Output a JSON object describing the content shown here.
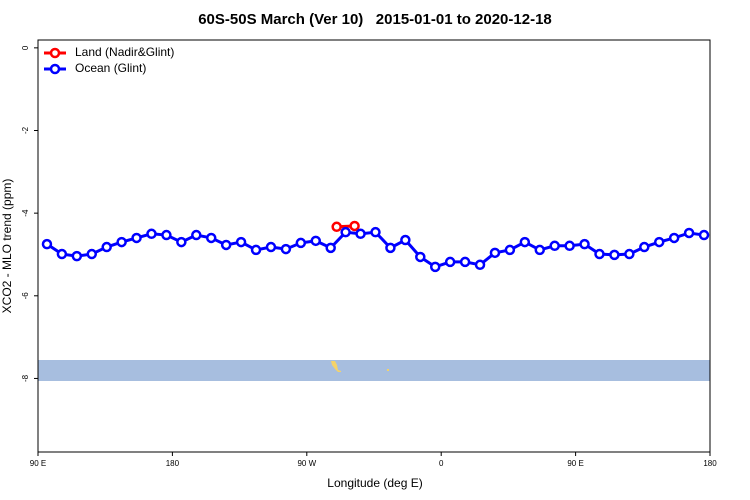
{
  "chart_data": {
    "type": "line",
    "title": "60S-50S March (Ver 10)   2015-01-01 to 2020-12-18",
    "xlabel": "Longitude (deg E)",
    "ylabel": "XCO2 - MLO trend (ppm)",
    "xlim": [
      90,
      540
    ],
    "xticks": [
      {
        "value": 90,
        "label": "90 E"
      },
      {
        "value": 180,
        "label": "180"
      },
      {
        "value": 270,
        "label": "90 W"
      },
      {
        "value": 360,
        "label": "0"
      },
      {
        "value": 450,
        "label": "90 E"
      },
      {
        "value": 540,
        "label": "180"
      }
    ],
    "ylim": [
      -9.78,
      0.19
    ],
    "yticks": [
      0,
      -2,
      -4,
      -6,
      -8
    ],
    "legend": "top-left",
    "series": [
      {
        "name": "Land (Nadir&Glint)",
        "color": "#ff0000",
        "x": [
          290,
          302
        ],
        "values": [
          -4.33,
          -4.31
        ]
      },
      {
        "name": "Ocean (Glint)",
        "color": "#0000ff",
        "x": [
          96,
          106,
          116,
          126,
          136,
          146,
          156,
          166,
          176,
          186,
          196,
          206,
          216,
          226,
          236,
          246,
          256,
          266,
          276,
          286,
          296,
          306,
          316,
          326,
          336,
          346,
          356,
          366,
          376,
          386,
          396,
          406,
          416,
          426,
          436,
          446,
          456,
          466,
          476,
          486,
          496,
          506,
          516,
          526,
          536
        ],
        "values": [
          -4.75,
          -4.99,
          -5.04,
          -4.99,
          -4.82,
          -4.7,
          -4.6,
          -4.5,
          -4.53,
          -4.7,
          -4.53,
          -4.6,
          -4.77,
          -4.7,
          -4.89,
          -4.82,
          -4.87,
          -4.72,
          -4.67,
          -4.84,
          -4.46,
          -4.5,
          -4.46,
          -4.84,
          -4.65,
          -5.06,
          -5.3,
          -5.18,
          -5.18,
          -5.25,
          -4.96,
          -4.89,
          -4.7,
          -4.89,
          -4.79,
          -4.79,
          -4.75,
          -4.99,
          -5.01,
          -4.99,
          -4.82,
          -4.7,
          -4.6,
          -4.48,
          -4.53
        ]
      }
    ]
  }
}
